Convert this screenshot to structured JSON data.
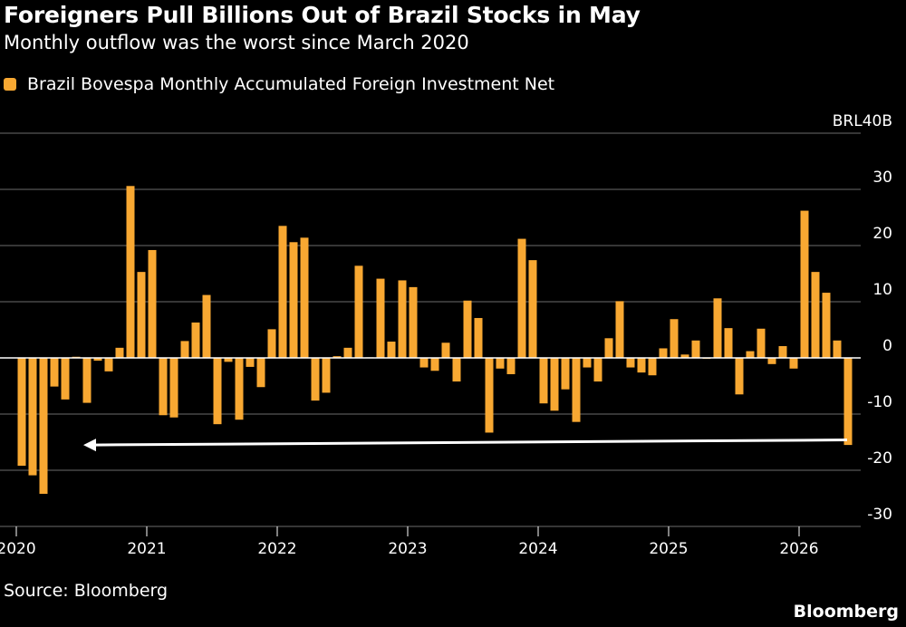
{
  "title": "Foreigners Pull Billions Out of Brazil Stocks in May",
  "subtitle": "Monthly outflow was the worst since March 2020",
  "source": "Source: Bloomberg",
  "brand": "Bloomberg",
  "colors": {
    "bar": "#f8a832",
    "grid": "#6b6b6b",
    "zero": "#ffffff",
    "arrow": "#ffffff"
  },
  "chart_data": {
    "type": "bar",
    "legend": {
      "placement": "top-left",
      "entries": [
        "Brazil Bovespa Monthly Accumulated Foreign Investment Net"
      ]
    },
    "yunit_label": "BRL40B",
    "ylim": [
      -30,
      40
    ],
    "yticks": [
      {
        "value": 40,
        "label": "BRL40B"
      },
      {
        "value": 30,
        "label": "30"
      },
      {
        "value": 20,
        "label": "20"
      },
      {
        "value": 10,
        "label": "10"
      },
      {
        "value": 0,
        "label": "0"
      },
      {
        "value": -10,
        "label": "-10"
      },
      {
        "value": -20,
        "label": "-20"
      },
      {
        "value": -30,
        "label": "-30"
      }
    ],
    "xticks": [
      "2020",
      "2021",
      "2022",
      "2023",
      "2024",
      "2025",
      "2026"
    ],
    "grid": true,
    "annotation": {
      "type": "arrow",
      "from_index": 76,
      "to_index": 3,
      "direction": "left"
    },
    "series": [
      {
        "name": "Brazil Bovespa Monthly Accumulated Foreign Investment Net",
        "start": "2020-01",
        "values": [
          -19.2,
          -20.9,
          -24.2,
          -5.1,
          -7.4,
          0.2,
          -8.0,
          -0.5,
          -2.4,
          1.8,
          30.6,
          15.3,
          19.2,
          -10.2,
          -10.6,
          3.0,
          6.3,
          11.2,
          -11.8,
          -0.7,
          -11.0,
          -1.6,
          -5.2,
          5.1,
          23.5,
          20.6,
          21.4,
          -7.6,
          -6.2,
          0.3,
          1.8,
          16.4,
          0.1,
          14.1,
          2.9,
          13.8,
          12.6,
          -1.7,
          -2.3,
          2.7,
          -4.2,
          10.2,
          7.1,
          -13.3,
          -1.9,
          -2.9,
          21.2,
          17.4,
          -8.1,
          -9.4,
          -5.6,
          -11.4,
          -1.7,
          -4.2,
          3.5,
          10.1,
          -1.7,
          -2.6,
          -3.1,
          1.7,
          6.9,
          0.6,
          3.1,
          0.0,
          10.6,
          5.3,
          -6.5,
          1.2,
          5.2,
          -1.1,
          2.1,
          -1.9,
          26.2,
          15.3,
          11.6,
          3.1,
          -15.5
        ]
      }
    ]
  },
  "icons": {
    "legend_swatch": "rounded-square"
  }
}
